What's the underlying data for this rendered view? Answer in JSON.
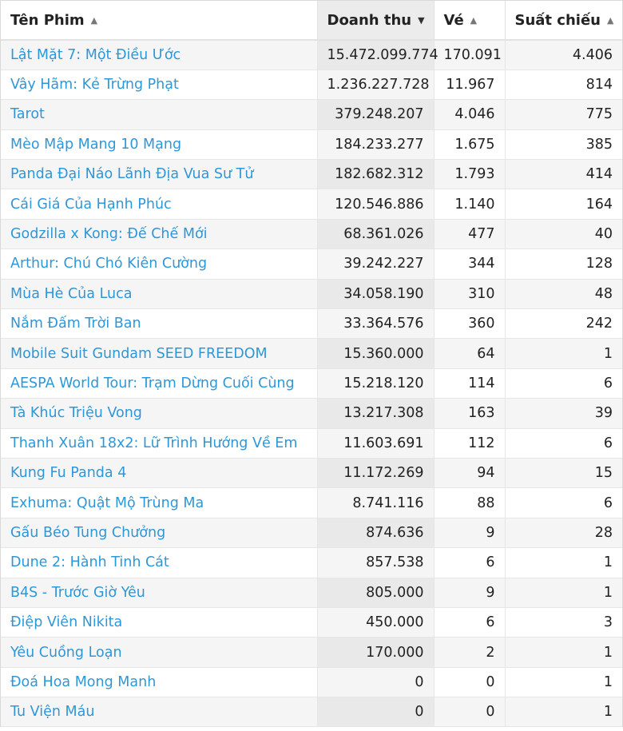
{
  "table": {
    "headers": {
      "name": "Tên Phim",
      "revenue": "Doanh thu",
      "tickets": "Vé",
      "showtimes": "Suất chiếu"
    },
    "sort": {
      "column": "revenue",
      "direction": "desc"
    },
    "rows": [
      {
        "name": "Lật Mặt 7: Một Điều Ước",
        "revenue": "15.472.099.774",
        "tickets": "170.091",
        "showtimes": "4.406"
      },
      {
        "name": "Vây Hãm: Kẻ Trừng Phạt",
        "revenue": "1.236.227.728",
        "tickets": "11.967",
        "showtimes": "814"
      },
      {
        "name": "Tarot",
        "revenue": "379.248.207",
        "tickets": "4.046",
        "showtimes": "775"
      },
      {
        "name": "Mèo Mập Mang 10 Mạng",
        "revenue": "184.233.277",
        "tickets": "1.675",
        "showtimes": "385"
      },
      {
        "name": "Panda Đại Náo Lãnh Địa Vua Sư Tử",
        "revenue": "182.682.312",
        "tickets": "1.793",
        "showtimes": "414"
      },
      {
        "name": "Cái Giá Của Hạnh Phúc",
        "revenue": "120.546.886",
        "tickets": "1.140",
        "showtimes": "164"
      },
      {
        "name": "Godzilla x Kong: Đế Chế Mới",
        "revenue": "68.361.026",
        "tickets": "477",
        "showtimes": "40"
      },
      {
        "name": "Arthur: Chú Chó Kiên Cường",
        "revenue": "39.242.227",
        "tickets": "344",
        "showtimes": "128"
      },
      {
        "name": "Mùa Hè Của Luca",
        "revenue": "34.058.190",
        "tickets": "310",
        "showtimes": "48"
      },
      {
        "name": "Nắm Đấm Trời Ban",
        "revenue": "33.364.576",
        "tickets": "360",
        "showtimes": "242"
      },
      {
        "name": "Mobile Suit Gundam SEED FREEDOM",
        "revenue": "15.360.000",
        "tickets": "64",
        "showtimes": "1"
      },
      {
        "name": "AESPA World Tour: Trạm Dừng Cuối Cùng",
        "revenue": "15.218.120",
        "tickets": "114",
        "showtimes": "6"
      },
      {
        "name": "Tà Khúc Triệu Vong",
        "revenue": "13.217.308",
        "tickets": "163",
        "showtimes": "39"
      },
      {
        "name": "Thanh Xuân 18x2: Lữ Trình Hướng Về Em",
        "revenue": "11.603.691",
        "tickets": "112",
        "showtimes": "6"
      },
      {
        "name": "Kung Fu Panda 4",
        "revenue": "11.172.269",
        "tickets": "94",
        "showtimes": "15"
      },
      {
        "name": "Exhuma: Quật Mộ Trùng Ma",
        "revenue": "8.741.116",
        "tickets": "88",
        "showtimes": "6"
      },
      {
        "name": "Gấu Béo Tung Chưởng",
        "revenue": "874.636",
        "tickets": "9",
        "showtimes": "28"
      },
      {
        "name": "Dune 2: Hành Tinh Cát",
        "revenue": "857.538",
        "tickets": "6",
        "showtimes": "1"
      },
      {
        "name": "B4S - Trước Giờ Yêu",
        "revenue": "805.000",
        "tickets": "9",
        "showtimes": "1"
      },
      {
        "name": "Điệp Viên Nikita",
        "revenue": "450.000",
        "tickets": "6",
        "showtimes": "3"
      },
      {
        "name": "Yêu Cuồng Loạn",
        "revenue": "170.000",
        "tickets": "2",
        "showtimes": "1"
      },
      {
        "name": "Đoá Hoa Mong Manh",
        "revenue": "0",
        "tickets": "0",
        "showtimes": "1"
      },
      {
        "name": "Tu Viện Máu",
        "revenue": "0",
        "tickets": "0",
        "showtimes": "1"
      }
    ]
  },
  "icons": {
    "sort_asc": "▲",
    "sort_desc": "▼"
  },
  "colors": {
    "link": "#2e97d8",
    "sorted_header": "#ececec"
  }
}
